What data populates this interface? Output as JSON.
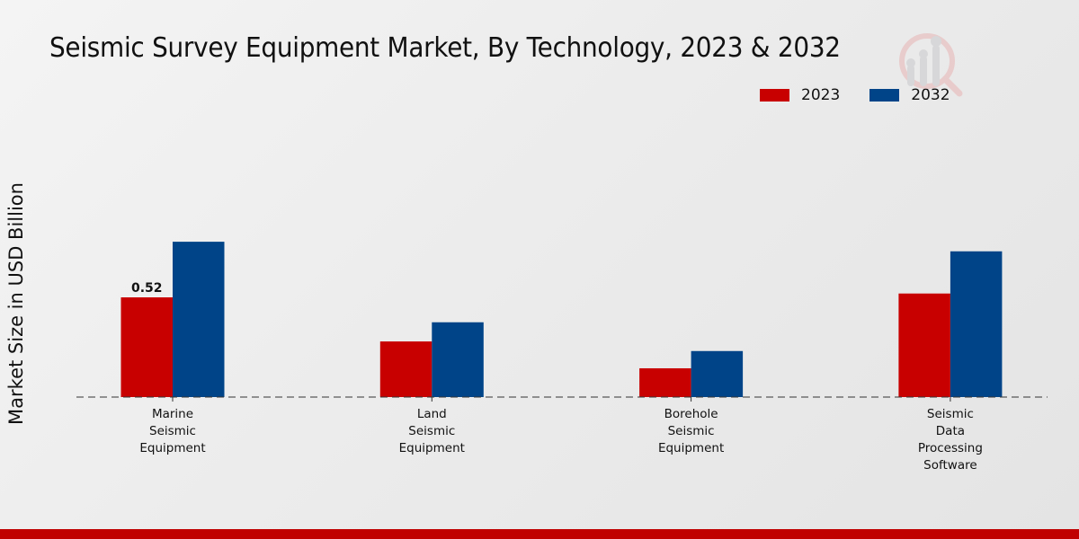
{
  "chart_data": {
    "type": "bar",
    "title": "Seismic Survey Equipment Market, By Technology, 2023 & 2032",
    "xlabel": "",
    "ylabel": "Market Size in USD Billion",
    "categories": [
      [
        "Marine",
        "Seismic",
        "Equipment"
      ],
      [
        "Land",
        "Seismic",
        "Equipment"
      ],
      [
        "Borehole",
        "Seismic",
        "Equipment"
      ],
      [
        "Seismic",
        "Data",
        "Processing",
        "Software"
      ]
    ],
    "series": [
      {
        "name": "2023",
        "color": "#c80000",
        "values": [
          0.52,
          0.29,
          0.15,
          0.54
        ]
      },
      {
        "name": "2032",
        "color": "#004488",
        "values": [
          0.81,
          0.39,
          0.24,
          0.76
        ]
      }
    ],
    "data_labels": [
      {
        "series": 0,
        "index": 0,
        "text": "0.52"
      }
    ],
    "ylim": [
      0,
      0.95
    ],
    "grid": false,
    "baseline": "dashed",
    "legend_position": "top-right"
  },
  "footer_color": "#c00000"
}
